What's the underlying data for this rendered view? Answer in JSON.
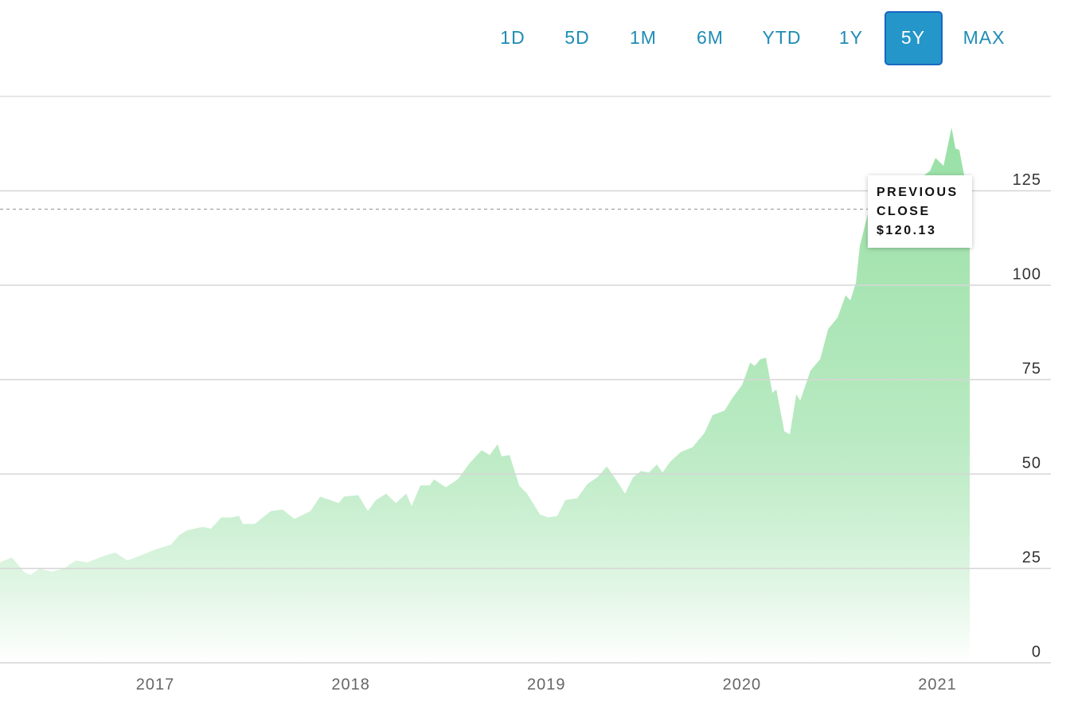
{
  "chart_data": {
    "type": "area",
    "range_options": [
      "1D",
      "5D",
      "1M",
      "6M",
      "YTD",
      "1Y",
      "5Y",
      "MAX"
    ],
    "selected_range": 6,
    "color": "#98e0a5",
    "x": [
      2016.206,
      2016.267,
      2016.328,
      2016.361,
      2016.41,
      2016.471,
      2016.532,
      2016.593,
      2016.654,
      2016.735,
      2016.796,
      2016.857,
      2016.919,
      2017.0,
      2017.081,
      2017.122,
      2017.163,
      2017.244,
      2017.285,
      2017.338,
      2017.387,
      2017.428,
      2017.448,
      2017.509,
      2017.55,
      2017.591,
      2017.651,
      2017.712,
      2017.794,
      2017.843,
      2017.896,
      2017.937,
      2017.965,
      2018.038,
      2018.087,
      2018.128,
      2018.181,
      2018.23,
      2018.283,
      2018.311,
      2018.356,
      2018.405,
      2018.425,
      2018.486,
      2018.547,
      2018.608,
      2018.669,
      2018.71,
      2018.751,
      2018.771,
      2018.812,
      2018.861,
      2018.901,
      2018.967,
      2019.008,
      2019.056,
      2019.097,
      2019.158,
      2019.211,
      2019.26,
      2019.309,
      2019.349,
      2019.402,
      2019.443,
      2019.484,
      2019.524,
      2019.565,
      2019.594,
      2019.634,
      2019.687,
      2019.748,
      2019.809,
      2019.85,
      2019.911,
      2019.952,
      2020.001,
      2020.042,
      2020.066,
      2020.094,
      2020.123,
      2020.156,
      2020.176,
      2020.217,
      2020.245,
      2020.278,
      2020.298,
      2020.351,
      2020.4,
      2020.441,
      2020.489,
      2020.53,
      2020.555,
      2020.583,
      2020.603,
      2020.644,
      2020.685,
      2020.726,
      2020.766,
      2020.807,
      2020.848,
      2020.888,
      2020.929,
      2020.962,
      2020.99,
      2021.031,
      2021.072,
      2021.092,
      2021.112,
      2021.141,
      2021.165
    ],
    "values": [
      26.6,
      27.9,
      24.1,
      23.3,
      25.0,
      24.1,
      25.0,
      27.1,
      26.6,
      28.3,
      29.2,
      27.1,
      28.3,
      30.0,
      31.3,
      33.8,
      35.1,
      36.0,
      35.5,
      38.5,
      38.5,
      38.9,
      36.8,
      36.8,
      38.5,
      40.2,
      40.6,
      38.1,
      40.2,
      44.0,
      43.1,
      42.3,
      44.0,
      44.4,
      40.2,
      43.1,
      44.8,
      42.3,
      44.8,
      41.5,
      47.0,
      47.0,
      48.6,
      46.5,
      48.6,
      52.9,
      56.3,
      55.0,
      57.9,
      54.7,
      55.0,
      47.0,
      44.8,
      39.3,
      38.5,
      38.9,
      43.1,
      43.6,
      47.4,
      49.1,
      52.0,
      49.1,
      44.8,
      49.1,
      50.8,
      50.4,
      52.5,
      50.4,
      53.3,
      55.8,
      57.1,
      60.9,
      65.6,
      66.8,
      70.2,
      73.6,
      79.5,
      78.6,
      80.4,
      80.8,
      71.5,
      72.4,
      61.3,
      60.5,
      71.1,
      69.4,
      77.4,
      80.4,
      88.4,
      91.4,
      97.3,
      96.0,
      100.7,
      110.4,
      118.9,
      124.4,
      126.5,
      125.7,
      125.2,
      128.2,
      128.6,
      129.0,
      130.3,
      133.7,
      131.6,
      141.7,
      136.2,
      135.8,
      127.8,
      125.2
    ],
    "xlim": [
      2016.206,
      2021.58
    ],
    "xticks": [
      2017,
      2018,
      2019,
      2020,
      2021
    ],
    "ylim": [
      0,
      150
    ],
    "yticks": [
      0,
      25,
      50,
      75,
      100,
      125
    ],
    "grid": true,
    "reference_line": {
      "label": "PREVIOUS CLOSE",
      "value": 120.13,
      "value_label": "$120.13"
    }
  }
}
